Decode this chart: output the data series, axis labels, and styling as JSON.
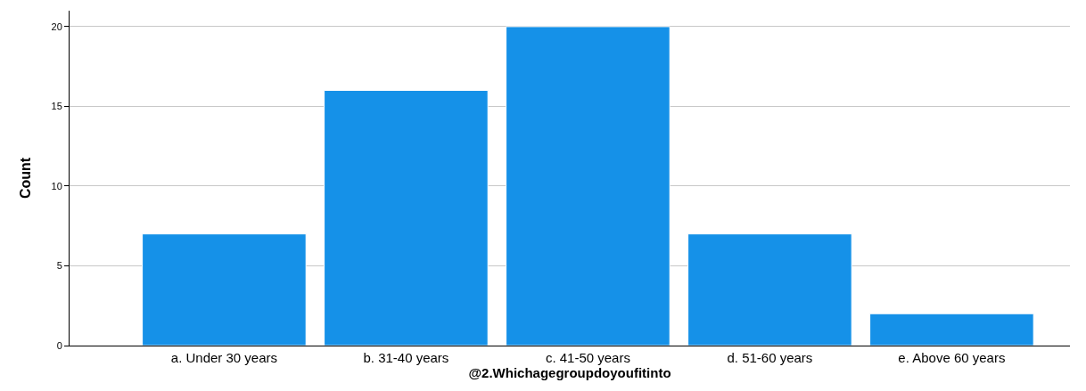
{
  "chart_data": {
    "type": "bar",
    "xlabel": "@2.Whichagegroupdoyoufitinto",
    "ylabel": "Count",
    "categories": [
      "a. Under 30 years",
      "b. 31-40 years",
      "c. 41-50 years",
      "d. 51-60 years",
      "e. Above 60 years"
    ],
    "values": [
      7,
      16,
      20,
      7,
      2
    ],
    "color": "#1591e8",
    "ylim": [
      0,
      21
    ],
    "yticks": [
      0,
      5,
      10,
      15,
      20
    ],
    "grid": "y"
  }
}
